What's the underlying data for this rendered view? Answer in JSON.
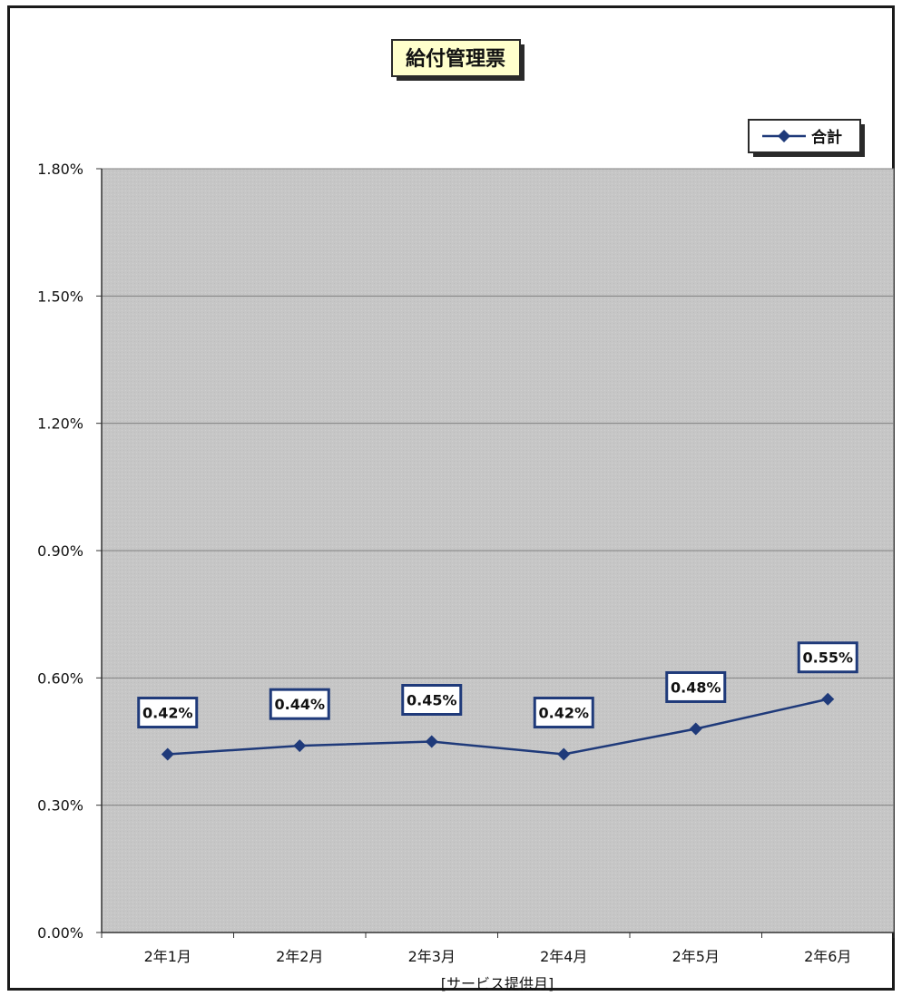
{
  "chart_data": {
    "type": "line",
    "title": "給付管理票",
    "xlabel": "[サービス提供月]",
    "ylabel": "",
    "categories": [
      "2年1月",
      "2年2月",
      "2年3月",
      "2年4月",
      "2年5月",
      "2年6月"
    ],
    "series": [
      {
        "name": "合計",
        "values": [
          0.42,
          0.44,
          0.45,
          0.42,
          0.48,
          0.55
        ],
        "labels": [
          "0.42%",
          "0.44%",
          "0.45%",
          "0.42%",
          "0.48%",
          "0.55%"
        ]
      }
    ],
    "ylim": [
      0,
      1.8
    ],
    "yticks": [
      0,
      0.3,
      0.6,
      0.9,
      1.2,
      1.5,
      1.8
    ],
    "ytick_labels": [
      "0.00%",
      "0.30%",
      "0.60%",
      "0.90%",
      "1.20%",
      "1.50%",
      "1.80%"
    ],
    "grid": true,
    "legend_position": "top-right",
    "colors": {
      "line": "#1f3a7a",
      "plot_background": "#c8c8c8",
      "title_background": "#ffffcc",
      "gridline": "#808080"
    }
  }
}
